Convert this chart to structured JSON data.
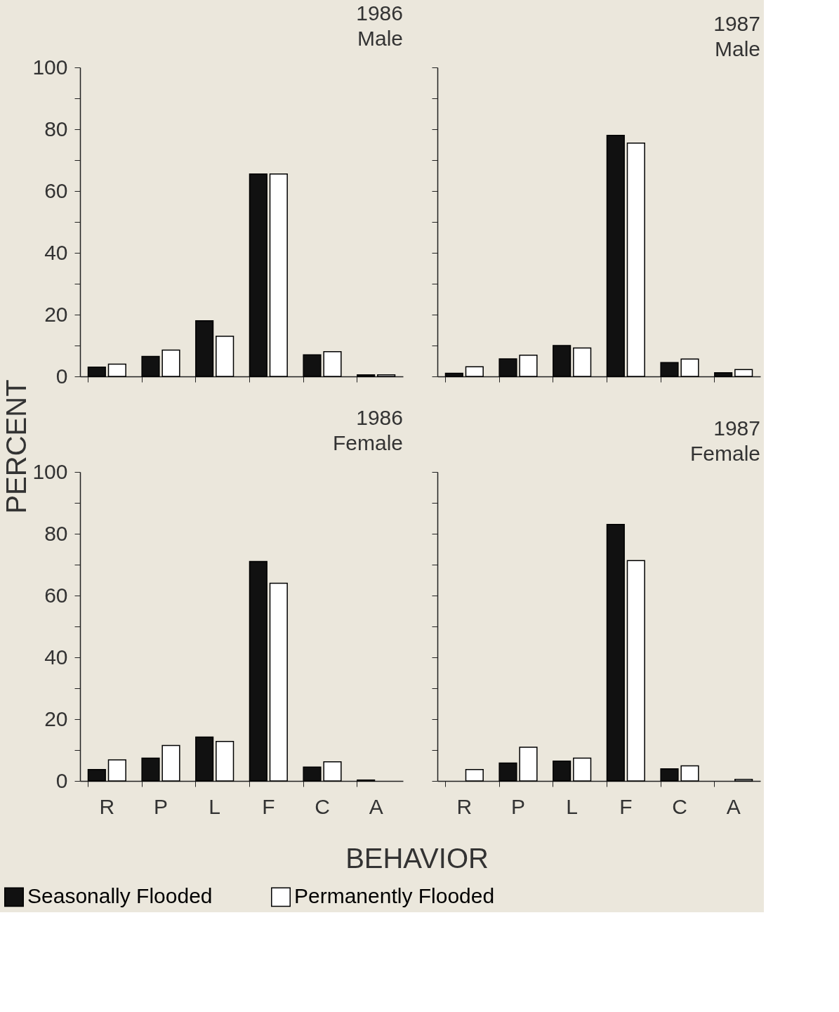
{
  "chart_data": [
    {
      "type": "bar",
      "title": "1986\nMale",
      "ylabel": "PERCENT",
      "categories": [
        "R",
        "P",
        "L",
        "F",
        "C",
        "A"
      ],
      "ylim": [
        0,
        100
      ],
      "yticks": [
        0,
        {
          "value": 10,
          "label": null
        },
        20,
        {
          "value": 30,
          "label": null
        },
        40,
        {
          "value": 50,
          "label": null
        },
        60,
        {
          "value": 70,
          "label": null
        },
        80,
        {
          "value": 90,
          "label": null
        },
        100
      ],
      "tick_labels": "y",
      "grid": false,
      "legend": "bottom",
      "series": [
        {
          "name": "Seasonally Flooded",
          "color": "#111111",
          "values": [
            3,
            6.5,
            18,
            65.5,
            7,
            0.5
          ]
        },
        {
          "name": "Permanently Flooded",
          "color": "#ffffff",
          "values": [
            4,
            8.5,
            13,
            65.5,
            8,
            0.5
          ]
        }
      ]
    },
    {
      "type": "bar",
      "title": "1987\nMale",
      "categories": [
        "R",
        "P",
        "L",
        "F",
        "C",
        "A"
      ],
      "ylim": [
        0,
        100
      ],
      "yticks": [
        0,
        {
          "value": 10,
          "label": null
        },
        20,
        {
          "value": 30,
          "label": null
        },
        40,
        {
          "value": 50,
          "label": null
        },
        60,
        {
          "value": 70,
          "label": null
        },
        80,
        {
          "value": 90,
          "label": null
        },
        100
      ],
      "tick_labels": false,
      "grid": false,
      "legend": "bottom",
      "series": [
        {
          "name": "Seasonally Flooded",
          "color": "#111111",
          "values": [
            1,
            5.7,
            10,
            78,
            4.5,
            1.2
          ]
        },
        {
          "name": "Permanently Flooded",
          "color": "#ffffff",
          "values": [
            3.1,
            6.9,
            9.2,
            75.5,
            5.6,
            2.2
          ]
        }
      ]
    },
    {
      "type": "bar",
      "title": "1986\nFemale",
      "xlabel": "BEHAVIOR",
      "categories": [
        "R",
        "P",
        "L",
        "F",
        "C",
        "A"
      ],
      "ylim": [
        0,
        100
      ],
      "yticks": [
        0,
        {
          "value": 10,
          "label": null
        },
        20,
        {
          "value": 30,
          "label": null
        },
        40,
        {
          "value": 50,
          "label": null
        },
        60,
        {
          "value": 70,
          "label": null
        },
        80,
        {
          "value": 90,
          "label": null
        },
        100
      ],
      "grid": false,
      "legend": "bottom",
      "series": [
        {
          "name": "Seasonally Flooded",
          "color": "#111111",
          "values": [
            3.7,
            7.4,
            14.2,
            71,
            4.5,
            0.3
          ]
        },
        {
          "name": "Permanently Flooded",
          "color": "#ffffff",
          "values": [
            6.8,
            11.5,
            12.8,
            64,
            6.2,
            null
          ]
        }
      ]
    },
    {
      "type": "bar",
      "title": "1987\nFemale",
      "categories": [
        "R",
        "P",
        "L",
        "F",
        "C",
        "A"
      ],
      "ylim": [
        0,
        100
      ],
      "yticks": [
        0,
        {
          "value": 10,
          "label": null
        },
        20,
        {
          "value": 30,
          "label": null
        },
        40,
        {
          "value": 50,
          "label": null
        },
        60,
        {
          "value": 70,
          "label": null
        },
        80,
        {
          "value": 90,
          "label": null
        },
        100
      ],
      "tick_labels": "x",
      "grid": false,
      "legend": "bottom",
      "series": [
        {
          "name": "Seasonally Flooded",
          "color": "#111111",
          "values": [
            null,
            5.8,
            6.4,
            83,
            3.9,
            null
          ]
        },
        {
          "name": "Permanently Flooded",
          "color": "#ffffff",
          "values": [
            3.7,
            10.9,
            7.4,
            71.3,
            4.9,
            0.5
          ]
        }
      ]
    }
  ]
}
